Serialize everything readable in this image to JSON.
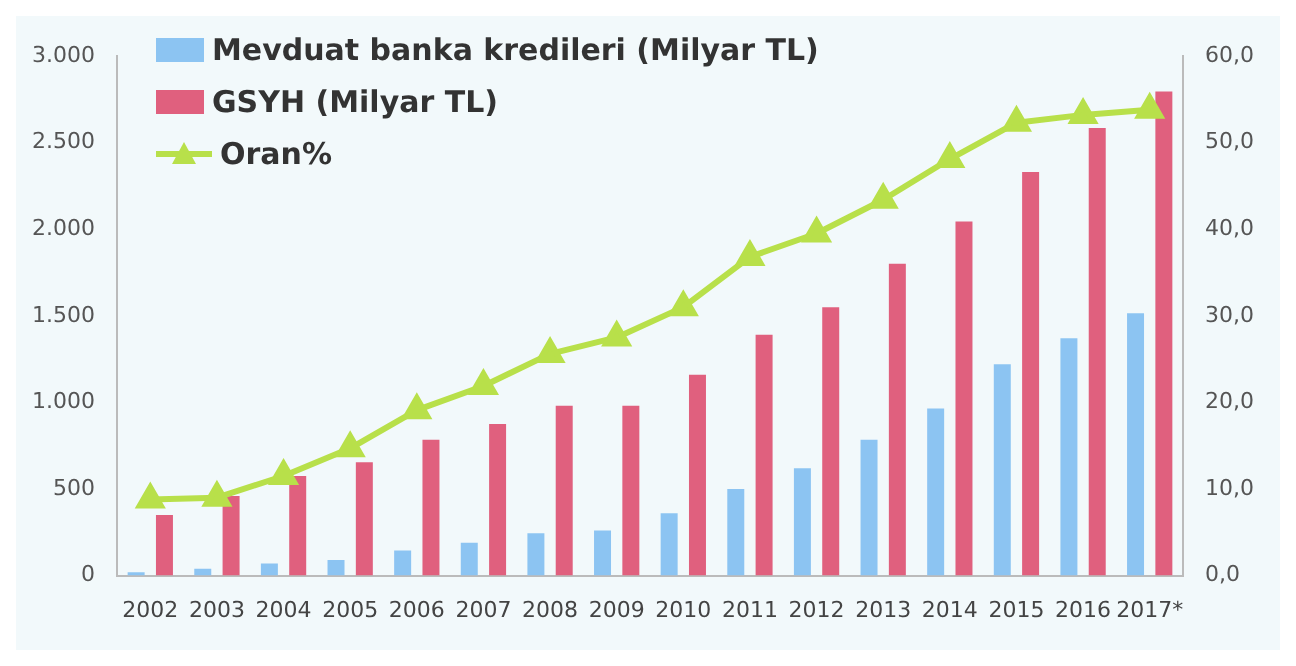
{
  "chart_data": {
    "type": "bar",
    "categories": [
      "2002",
      "2003",
      "2004",
      "2005",
      "2006",
      "2007",
      "2008",
      "2009",
      "2010",
      "2011",
      "2012",
      "2013",
      "2014",
      "2015",
      "2016",
      "2017*"
    ],
    "series": [
      {
        "name": "Mevduat banka kredileri (Milyar TL)",
        "color": "#8cc4f2",
        "values": [
          20,
          40,
          70,
          90,
          145,
          190,
          245,
          260,
          360,
          500,
          620,
          785,
          965,
          1220,
          1370,
          1515
        ]
      },
      {
        "name": "GSYH (Milyar TL)",
        "color": "#e0607e",
        "values": [
          350,
          460,
          575,
          655,
          785,
          875,
          980,
          980,
          1160,
          1390,
          1550,
          1800,
          2045,
          2330,
          2585,
          2795
        ]
      },
      {
        "name": "Oran%",
        "type": "line",
        "axis": "y2",
        "color": "#b8e04a",
        "marker": "triangle",
        "values": [
          8.8,
          9.0,
          11.5,
          14.7,
          19.1,
          21.9,
          25.6,
          27.5,
          31.0,
          36.8,
          39.5,
          43.4,
          48.1,
          52.3,
          53.2,
          53.8
        ]
      }
    ],
    "ylim": [
      0,
      3000
    ],
    "yticks": [
      {
        "value": 0,
        "label": "0"
      },
      {
        "value": 500,
        "label": "500"
      },
      {
        "value": 1000,
        "label": "1.000"
      },
      {
        "value": 1500,
        "label": "1.500"
      },
      {
        "value": 2000,
        "label": "2.000"
      },
      {
        "value": 2500,
        "label": "2.500"
      },
      {
        "value": 3000,
        "label": "3.000"
      }
    ],
    "y2lim": [
      0,
      60
    ],
    "y2ticks": [
      {
        "value": 0,
        "label": "0,0"
      },
      {
        "value": 10,
        "label": "10,0"
      },
      {
        "value": 20,
        "label": "20,0"
      },
      {
        "value": 30,
        "label": "30,0"
      },
      {
        "value": 40,
        "label": "40,0"
      },
      {
        "value": 50,
        "label": "50,0"
      },
      {
        "value": 60,
        "label": "60,0"
      }
    ],
    "grid": false,
    "legend": "top left"
  }
}
